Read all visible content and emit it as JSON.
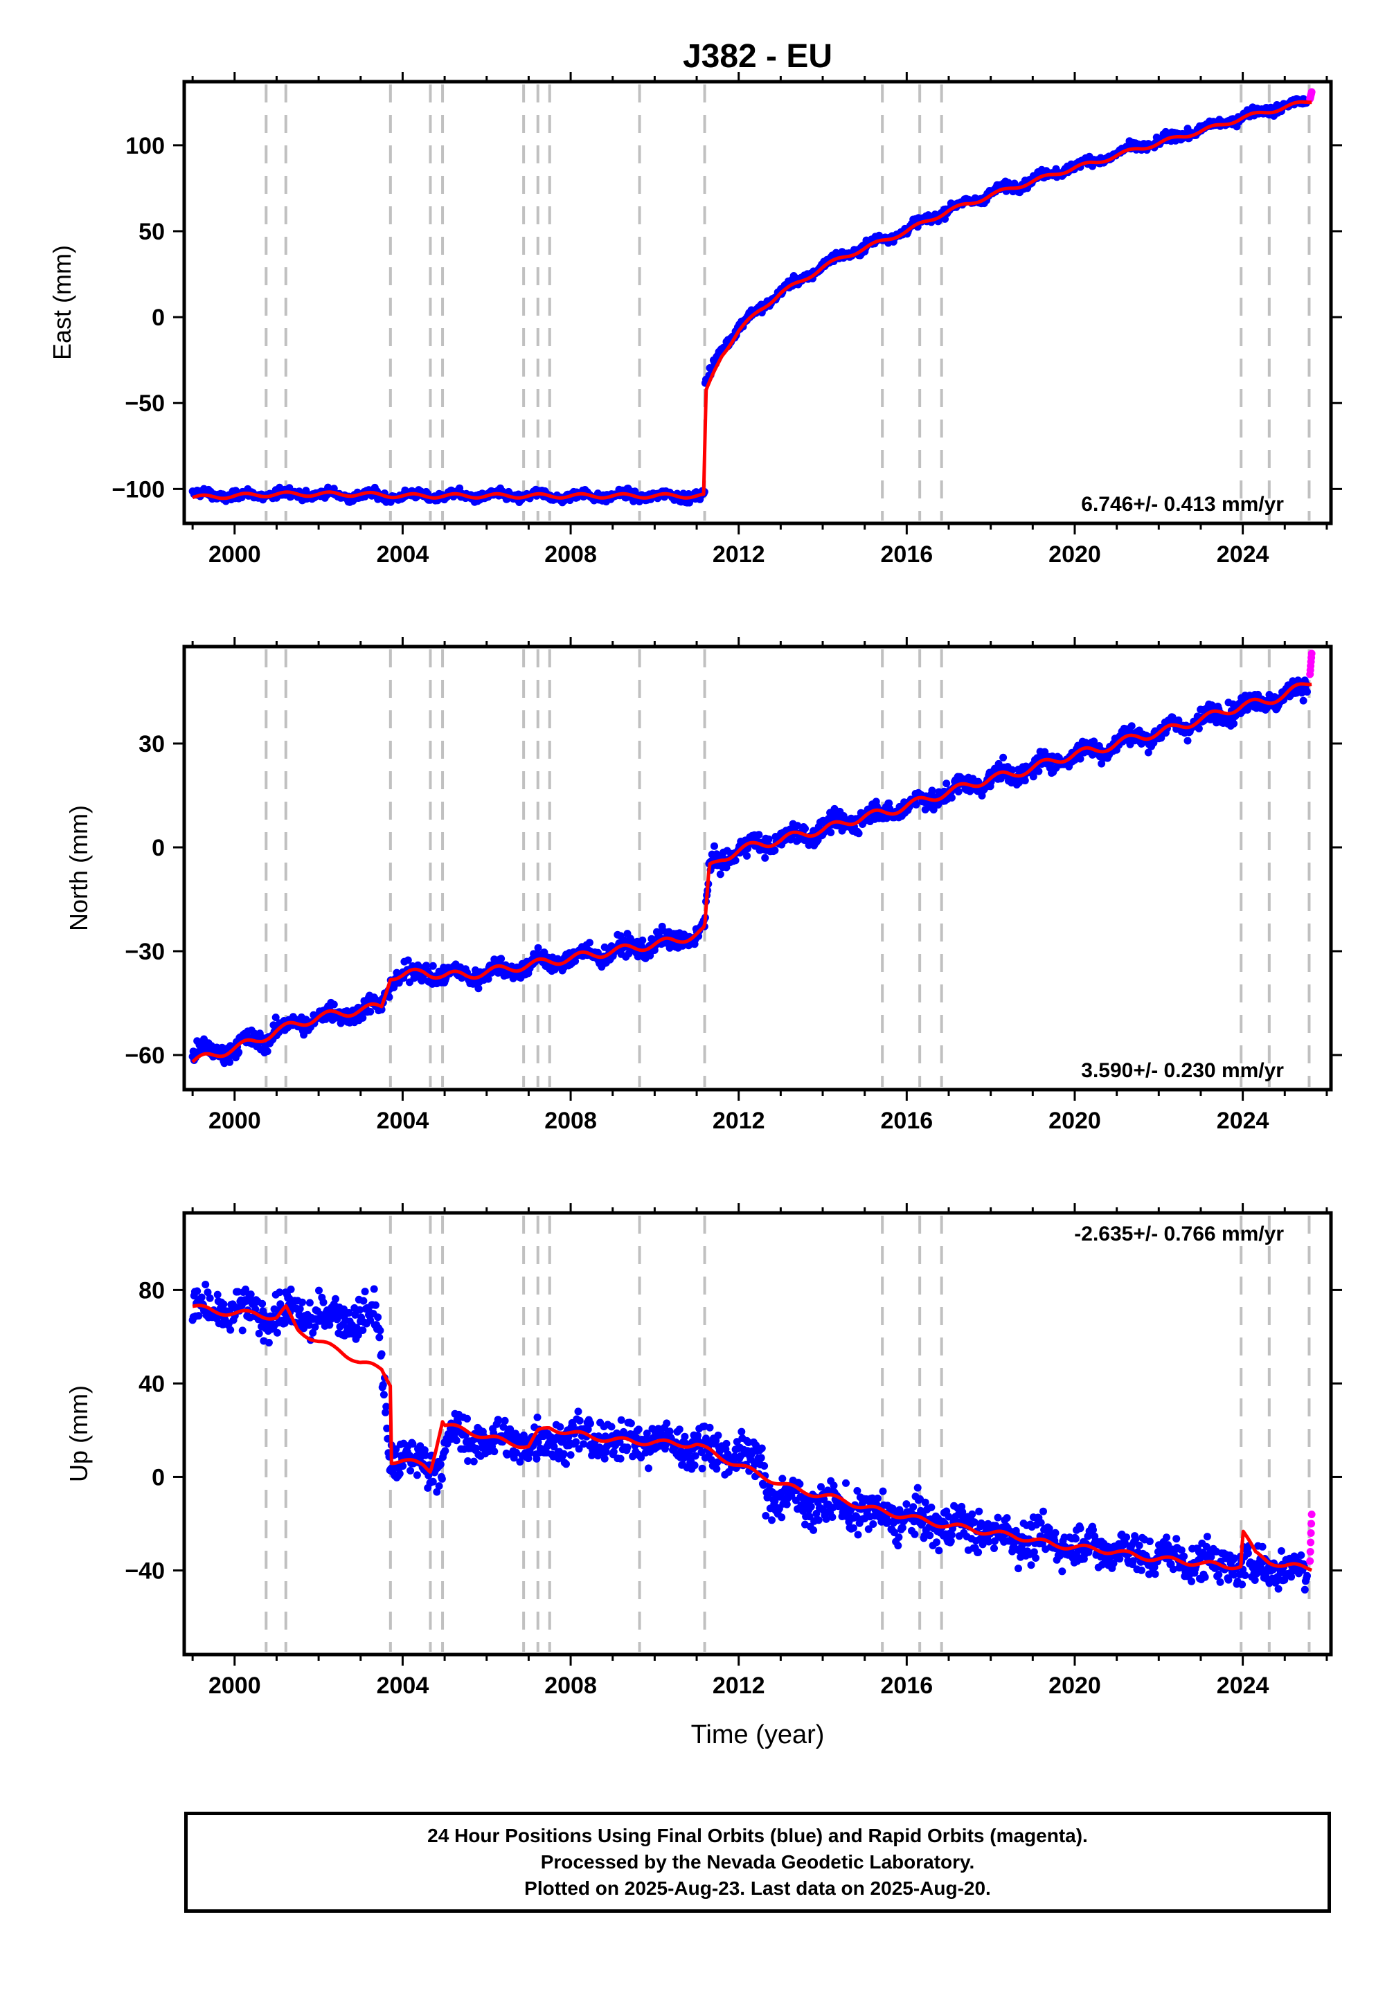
{
  "figure": {
    "title": "J382 - EU",
    "x_axis_label": "Time (year)"
  },
  "footer": {
    "lines": [
      "24 Hour Positions Using Final Orbits (blue) and Rapid Orbits (magenta).",
      "Processed by the Nevada Geodetic Laboratory.",
      "Plotted on 2025-Aug-23. Last data on 2025-Aug-20."
    ]
  },
  "colors": {
    "final_orbits": "#0000ff",
    "rapid_orbits": "#ff00ff",
    "model": "#ff0000",
    "event_lines": "#c0c0c0",
    "frame": "#000000"
  },
  "chart_data": [
    {
      "type": "scatter",
      "panel": "east",
      "ylabel": "East (mm)",
      "xlim": [
        1998.8,
        2026.1
      ],
      "ylim": [
        -120,
        137
      ],
      "xticks": [
        2000,
        2004,
        2008,
        2012,
        2016,
        2020,
        2024
      ],
      "yticks": [
        -100,
        -50,
        0,
        50,
        100
      ],
      "ytick_labels": [
        "−100",
        "−50",
        "0",
        "50",
        "100"
      ],
      "rate_label": "6.746+/- 0.413 mm/yr",
      "rate_position": "bottom-right",
      "event_lines": [
        2000.75,
        2001.22,
        2003.71,
        2004.66,
        2004.95,
        2006.88,
        2007.22,
        2007.5,
        2009.64,
        2011.19,
        2015.42,
        2016.31,
        2016.83,
        2023.96,
        2024.63,
        2025.58
      ],
      "series": [
        {
          "name": "Final Orbits (blue)",
          "x": [
            1999.0,
            2000.0,
            2001.0,
            2002.0,
            2003.0,
            2004.0,
            2005.0,
            2006.0,
            2007.0,
            2008.0,
            2009.0,
            2010.0,
            2011.0,
            2011.19,
            2011.2,
            2011.4,
            2011.6,
            2012.0,
            2012.5,
            2013.0,
            2013.5,
            2014.0,
            2014.5,
            2015.0,
            2015.5,
            2016.0,
            2016.5,
            2017.0,
            2017.5,
            2018.0,
            2018.5,
            2019.0,
            2019.5,
            2020.0,
            2020.5,
            2021.0,
            2021.5,
            2022.0,
            2022.5,
            2023.0,
            2023.5,
            2024.0,
            2024.5,
            2025.0,
            2025.5
          ],
          "y": [
            -103,
            -104,
            -103,
            -103,
            -104,
            -104,
            -104,
            -104,
            -104,
            -104,
            -104,
            -104,
            -104,
            -104,
            -40,
            -28,
            -18,
            -6,
            5,
            15,
            22,
            30,
            36,
            41,
            46,
            51,
            57,
            63,
            67,
            72,
            76,
            80,
            84,
            88,
            91,
            95,
            99,
            102,
            106,
            109,
            113,
            117,
            120,
            123,
            125
          ]
        },
        {
          "name": "Rapid Orbits (magenta)",
          "x": [
            2025.6,
            2025.64
          ],
          "y": [
            127,
            131
          ]
        }
      ],
      "model": {
        "x": [
          1999.0,
          2000.0,
          2001.0,
          2002.0,
          2003.0,
          2004.0,
          2005.0,
          2006.0,
          2007.0,
          2008.0,
          2009.0,
          2010.0,
          2011.0,
          2011.19,
          2011.2,
          2011.4,
          2011.6,
          2012.0,
          2012.5,
          2013.0,
          2013.5,
          2014.0,
          2014.5,
          2015.0,
          2015.5,
          2016.0,
          2016.5,
          2017.0,
          2017.5,
          2018.0,
          2018.5,
          2019.0,
          2019.5,
          2020.0,
          2020.5,
          2021.0,
          2021.5,
          2022.0,
          2022.5,
          2023.0,
          2023.5,
          2024.0,
          2024.5,
          2025.0,
          2025.64
        ],
        "y": [
          -105,
          -104,
          -103,
          -103,
          -103,
          -104,
          -104,
          -104,
          -104,
          -104,
          -104,
          -104,
          -104,
          -104,
          -45,
          -33,
          -22,
          -8,
          4,
          14,
          21,
          29,
          35,
          40,
          45,
          50,
          56,
          62,
          66,
          71,
          75,
          79,
          83,
          87,
          90,
          94,
          98,
          101,
          105,
          108,
          112,
          116,
          119,
          122,
          126
        ]
      }
    },
    {
      "type": "scatter",
      "panel": "north",
      "ylabel": "North (mm)",
      "xlim": [
        1998.8,
        2026.1
      ],
      "ylim": [
        -70,
        58
      ],
      "xticks": [
        2000,
        2004,
        2008,
        2012,
        2016,
        2020,
        2024
      ],
      "yticks": [
        -60,
        -30,
        0,
        30
      ],
      "ytick_labels": [
        "−60",
        "−30",
        "0",
        "30"
      ],
      "rate_label": "3.590+/- 0.230 mm/yr",
      "rate_position": "bottom-right",
      "event_lines": [
        2000.75,
        2001.22,
        2003.71,
        2004.66,
        2004.95,
        2006.88,
        2007.22,
        2007.5,
        2009.64,
        2011.19,
        2015.42,
        2016.31,
        2016.83,
        2023.96,
        2024.63,
        2025.58
      ],
      "series": [
        {
          "name": "Final Orbits (blue)",
          "x": [
            1999.0,
            1999.5,
            2000.0,
            2000.5,
            2001.0,
            2001.5,
            2002.0,
            2002.5,
            2003.0,
            2003.5,
            2003.71,
            2004.0,
            2004.5,
            2005.0,
            2005.5,
            2006.0,
            2006.5,
            2007.0,
            2007.5,
            2008.0,
            2008.5,
            2009.0,
            2009.5,
            2010.0,
            2010.5,
            2011.0,
            2011.19,
            2011.3,
            2011.6,
            2012.0,
            2012.5,
            2013.0,
            2013.5,
            2014.0,
            2014.5,
            2015.0,
            2015.5,
            2016.0,
            2016.5,
            2017.0,
            2017.5,
            2018.0,
            2018.5,
            2019.0,
            2019.5,
            2020.0,
            2020.5,
            2021.0,
            2021.5,
            2022.0,
            2022.5,
            2023.0,
            2023.5,
            2024.0,
            2024.5,
            2025.0,
            2025.5
          ],
          "y": [
            -60,
            -59,
            -58,
            -56,
            -53,
            -51,
            -49,
            -48,
            -47,
            -46,
            -38,
            -37,
            -36,
            -37,
            -37,
            -36,
            -35,
            -34,
            -33,
            -32,
            -31,
            -30,
            -29,
            -28,
            -27,
            -25,
            -24,
            -6,
            -3,
            -1,
            1,
            2,
            4,
            5,
            7,
            9,
            10,
            12,
            14,
            16,
            18,
            20,
            21,
            23,
            25,
            27,
            28,
            30,
            32,
            33,
            35,
            37,
            39,
            41,
            42,
            44,
            46
          ]
        },
        {
          "name": "Rapid Orbits (magenta)",
          "x": [
            2025.6,
            2025.64
          ],
          "y": [
            50,
            56
          ]
        }
      ],
      "model": {
        "x": [
          1999.0,
          1999.5,
          2000.0,
          2000.5,
          2001.0,
          2001.5,
          2002.0,
          2002.5,
          2003.0,
          2003.5,
          2003.71,
          2004.0,
          2004.5,
          2005.0,
          2005.5,
          2006.0,
          2006.5,
          2007.0,
          2007.5,
          2008.0,
          2008.5,
          2009.0,
          2009.5,
          2010.0,
          2010.5,
          2011.0,
          2011.19,
          2011.3,
          2011.6,
          2012.0,
          2012.5,
          2013.0,
          2013.5,
          2014.0,
          2014.5,
          2015.0,
          2015.5,
          2016.0,
          2016.5,
          2017.0,
          2017.5,
          2018.0,
          2018.5,
          2019.0,
          2019.5,
          2020.0,
          2020.5,
          2021.0,
          2021.5,
          2022.0,
          2022.5,
          2023.0,
          2023.5,
          2024.0,
          2024.5,
          2025.0,
          2025.64
        ],
        "y": [
          -62,
          -60,
          -58,
          -56,
          -53,
          -51,
          -49,
          -48,
          -47,
          -46,
          -37,
          -37,
          -36,
          -37,
          -37,
          -36,
          -35,
          -34,
          -33,
          -32,
          -31,
          -30,
          -29,
          -28,
          -27,
          -25,
          -24,
          -6,
          -3,
          -1,
          1,
          2,
          4,
          5,
          7,
          9,
          10,
          12,
          14,
          16,
          18,
          20,
          21,
          23,
          25,
          27,
          28,
          30,
          32,
          33,
          35,
          37,
          39,
          41,
          42,
          44,
          48
        ]
      }
    },
    {
      "type": "scatter",
      "panel": "up",
      "ylabel": "Up (mm)",
      "xlim": [
        1998.8,
        2026.1
      ],
      "ylim": [
        -76,
        113
      ],
      "xticks": [
        2000,
        2004,
        2008,
        2012,
        2016,
        2020,
        2024
      ],
      "yticks": [
        -40,
        0,
        40,
        80
      ],
      "ytick_labels": [
        "−40",
        "0",
        "40",
        "80"
      ],
      "rate_label": "-2.635+/- 0.766 mm/yr",
      "rate_position": "top-right",
      "event_lines": [
        2000.75,
        2001.22,
        2003.71,
        2004.66,
        2004.95,
        2006.88,
        2007.22,
        2007.5,
        2009.64,
        2011.19,
        2015.42,
        2016.31,
        2016.83,
        2023.96,
        2024.63,
        2025.58
      ],
      "series": [
        {
          "name": "Final Orbits (blue)",
          "x": [
            1999.0,
            1999.5,
            2000.0,
            2000.5,
            2001.0,
            2001.5,
            2002.0,
            2002.5,
            2003.0,
            2003.4,
            2003.7,
            2004.0,
            2004.5,
            2004.9,
            2005.2,
            2005.5,
            2006.0,
            2006.5,
            2007.0,
            2007.5,
            2008.0,
            2008.5,
            2009.0,
            2009.5,
            2010.0,
            2010.5,
            2011.0,
            2011.5,
            2012.0,
            2012.5,
            2012.7,
            2013.0,
            2013.5,
            2014.0,
            2014.5,
            2015.0,
            2015.5,
            2016.0,
            2016.5,
            2017.0,
            2017.5,
            2018.0,
            2018.5,
            2019.0,
            2019.5,
            2020.0,
            2020.5,
            2021.0,
            2021.5,
            2022.0,
            2022.5,
            2023.0,
            2023.5,
            2024.0,
            2024.5,
            2025.0,
            2025.5
          ],
          "y": [
            72,
            70,
            71,
            70,
            69,
            70,
            68,
            69,
            68,
            69,
            8,
            7,
            6,
            6,
            18,
            17,
            15,
            16,
            14,
            16,
            17,
            16,
            15,
            16,
            15,
            14,
            13,
            12,
            9,
            7,
            -8,
            -9,
            -10,
            -12,
            -13,
            -15,
            -17,
            -18,
            -19,
            -21,
            -22,
            -24,
            -25,
            -27,
            -28,
            -29,
            -30,
            -31,
            -33,
            -34,
            -35,
            -36,
            -37,
            -38,
            -38,
            -39,
            -40
          ]
        },
        {
          "name": "Rapid Orbits (magenta)",
          "x": [
            2025.6,
            2025.64
          ],
          "y": [
            -36,
            -16
          ]
        }
      ],
      "model": {
        "x": [
          1999.0,
          1999.5,
          2000.0,
          2000.5,
          2001.0,
          2001.22,
          2001.5,
          2002.0,
          2002.5,
          2003.0,
          2003.5,
          2003.71,
          2003.72,
          2004.0,
          2004.5,
          2004.66,
          2004.95,
          2005.0,
          2005.5,
          2006.0,
          2006.5,
          2007.0,
          2007.22,
          2007.5,
          2008.0,
          2008.5,
          2009.0,
          2009.5,
          2010.0,
          2010.5,
          2011.0,
          2011.19,
          2011.5,
          2012.0,
          2012.5,
          2013.0,
          2013.5,
          2014.0,
          2014.5,
          2015.0,
          2015.5,
          2016.0,
          2016.5,
          2017.0,
          2017.5,
          2018.0,
          2018.5,
          2019.0,
          2019.5,
          2020.0,
          2020.5,
          2021.0,
          2021.5,
          2022.0,
          2022.5,
          2023.0,
          2023.5,
          2023.96,
          2024.0,
          2024.3,
          2024.63,
          2025.0,
          2025.64
        ],
        "y": [
          73,
          71,
          70,
          70,
          68,
          72,
          63,
          58,
          54,
          49,
          46,
          40,
          7,
          7,
          5,
          3,
          24,
          22,
          20,
          17,
          15,
          13,
          19,
          21,
          19,
          17,
          16,
          15,
          15,
          14,
          14,
          12,
          9,
          5,
          1,
          -3,
          -6,
          -8,
          -10,
          -13,
          -15,
          -17,
          -19,
          -21,
          -22,
          -24,
          -25,
          -27,
          -29,
          -30,
          -31,
          -32,
          -34,
          -35,
          -36,
          -37,
          -38,
          -38,
          -23,
          -33,
          -36,
          -38,
          -39
        ]
      }
    }
  ]
}
